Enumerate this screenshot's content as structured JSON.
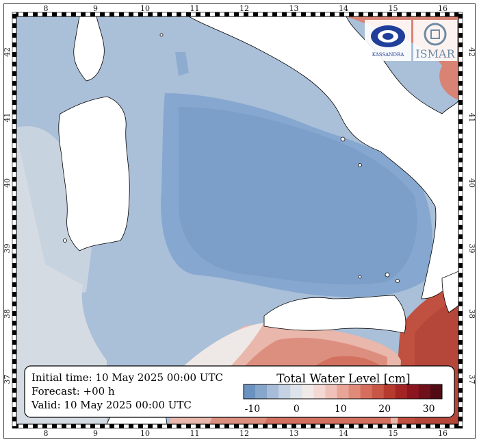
{
  "map": {
    "lon_ticks": [
      "8",
      "9",
      "10",
      "11",
      "12",
      "13",
      "14",
      "15",
      "16"
    ],
    "lat_ticks": [
      "42",
      "41",
      "40",
      "39",
      "38",
      "37"
    ]
  },
  "info_box": {
    "initial_time": "Initial time: 10 May 2025 00:00 UTC",
    "forecast": "Forecast: +00 h",
    "valid": "Valid: 10 May 2025 00:00 UTC"
  },
  "legend": {
    "title": "Total Water Level [cm]",
    "tick_labels": [
      "-10",
      "0",
      "10",
      "20",
      "30"
    ],
    "colors": [
      "#6b93c2",
      "#86a6cc",
      "#a6bcd8",
      "#c5d2e3",
      "#dde3ea",
      "#efe9e8",
      "#f3d8d4",
      "#efc1b8",
      "#e8a497",
      "#e08a7a",
      "#d66e5d",
      "#c85545",
      "#b73a2f",
      "#a32423",
      "#8b1620",
      "#6f101a",
      "#520b14"
    ]
  },
  "logos": {
    "left": "KASSANDRA",
    "right": "ISMAR"
  },
  "colors": {
    "sea_negative": "#9bb5d4",
    "sea_core": "#7a9fcb",
    "sea_neutral": "#d7dde4",
    "sea_positive": "#d17363",
    "land": "#ffffff"
  }
}
